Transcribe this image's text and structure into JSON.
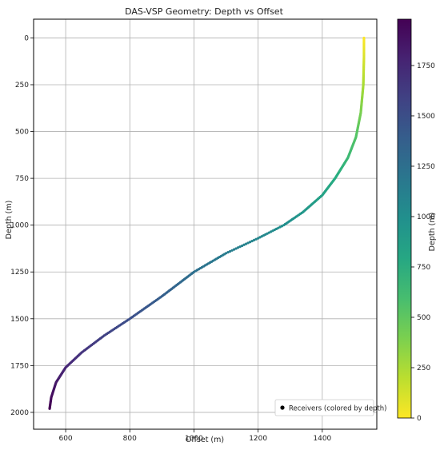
{
  "chart_data": {
    "type": "scatter",
    "title": "DAS-VSP Geometry: Depth vs Offset",
    "xlabel": "Offset (m)",
    "ylabel": "Depth (m)",
    "xlim": [
      500,
      1570
    ],
    "ylim": [
      2090,
      -100
    ],
    "y_inverted": true,
    "grid": true,
    "legend_position": "lower-right",
    "legend": [
      {
        "label": "Receivers (colored by depth)",
        "color": "#000000"
      }
    ],
    "xticks": [
      600,
      800,
      1000,
      1200,
      1400
    ],
    "yticks": [
      0,
      250,
      500,
      750,
      1000,
      1250,
      1500,
      1750,
      2000
    ],
    "colorbar": {
      "label": "Depth (m)",
      "colormap": "viridis_r",
      "range": [
        0,
        1980
      ],
      "ticks": [
        0,
        250,
        500,
        750,
        1000,
        1250,
        1500,
        1750
      ]
    },
    "series": [
      {
        "name": "Receivers (colored by depth)",
        "x_key_points": [
          1530,
          1530,
          1528,
          1520,
          1505,
          1480,
          1440,
          1400,
          1340,
          1280,
          1200,
          1100,
          1000,
          900,
          800,
          720,
          650,
          600,
          570,
          555,
          550
        ],
        "y_key_points": [
          0,
          100,
          250,
          400,
          530,
          640,
          750,
          840,
          930,
          1000,
          1070,
          1150,
          1250,
          1380,
          1500,
          1590,
          1680,
          1760,
          1840,
          1920,
          1980
        ],
        "point_spacing_m": 5
      }
    ]
  }
}
